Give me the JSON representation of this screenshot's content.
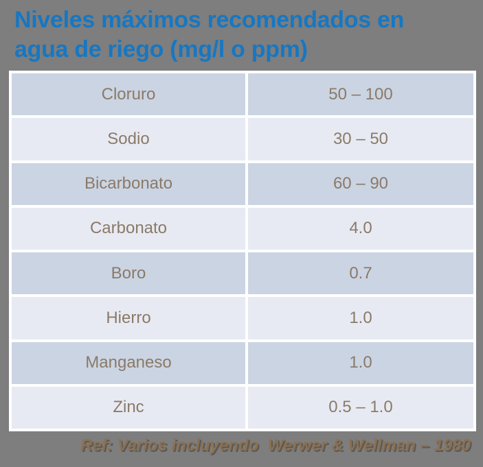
{
  "slide": {
    "title": {
      "line1": "Niveles máximos recomendados en",
      "line2": "agua de riego (mg/l o ppm)"
    },
    "table": {
      "rows": [
        {
          "param": "Cloruro",
          "value": "50 – 100"
        },
        {
          "param": "Sodio",
          "value": "30 – 50"
        },
        {
          "param": "Bicarbonato",
          "value": "60 – 90"
        },
        {
          "param": "Carbonato",
          "value": "4.0"
        },
        {
          "param": "Boro",
          "value": "0.7"
        },
        {
          "param": "Hierro",
          "value": "1.0"
        },
        {
          "param": "Manganeso",
          "value": "1.0"
        },
        {
          "param": "Zinc",
          "value": "0.5 – 1.0"
        }
      ]
    },
    "footer": "Ref: Varios incluyendo  Werwer & Wellman – 1980",
    "colors": {
      "background": "#7E7E7E",
      "title_blue": "#1777C2",
      "row_band_dark": "#CAD4E3",
      "row_band_light": "#E7EAF3",
      "cell_text": "#8B7A67",
      "footer_text": "#8A7054",
      "table_border": "#FFFFFF"
    }
  }
}
